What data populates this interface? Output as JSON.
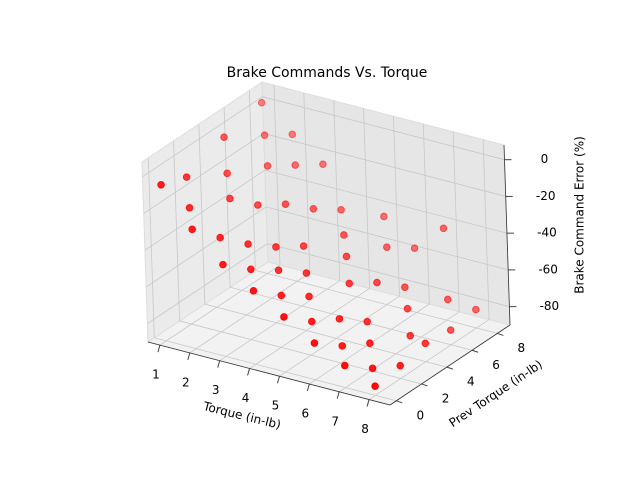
{
  "chart_data": {
    "type": "scatter3d",
    "title": "Brake Commands Vs. Torque",
    "xlabel": "Torque (in-lb)",
    "ylabel": "Prev Torque (in-lb)",
    "zlabel": "Brake Command Error  (%)",
    "series": [
      {
        "color": "#ff0000",
        "x": [
          1,
          1,
          1,
          1,
          1.5,
          1.5,
          1.5,
          2,
          2,
          2,
          2,
          2.5,
          2.5,
          2.5,
          3,
          3,
          3,
          3,
          3.5,
          3.5,
          3.5,
          4,
          4,
          4,
          4,
          4.5,
          4.5,
          4.5,
          5,
          5,
          5,
          5,
          5.5,
          5.5,
          5.5,
          6,
          6,
          6,
          6,
          6.5,
          6.5,
          6.5,
          7,
          7,
          7,
          7,
          7.5,
          7.5,
          7.5,
          8,
          8,
          8,
          8,
          8
        ],
        "y": [
          0,
          2,
          5,
          8,
          1,
          4,
          7,
          0,
          3,
          6,
          8,
          1,
          4,
          7,
          0,
          2,
          5,
          8,
          1,
          3,
          6,
          0,
          2,
          4,
          7,
          1,
          3,
          6,
          0,
          2,
          5,
          8,
          1,
          4,
          7,
          0,
          2,
          5,
          8,
          1,
          3,
          6,
          0,
          2,
          5,
          8,
          1,
          4,
          7,
          0,
          2,
          4,
          6,
          8
        ],
        "z": [
          -5,
          -10,
          -2,
          3,
          -20,
          -15,
          -8,
          -25,
          -22,
          -18,
          -10,
          -32,
          -28,
          -20,
          -40,
          -38,
          -30,
          -22,
          -45,
          -42,
          -35,
          -50,
          -48,
          -44,
          -38,
          -55,
          -52,
          -45,
          -60,
          -58,
          -50,
          -42,
          -65,
          -58,
          -52,
          -70,
          -66,
          -60,
          -55,
          -74,
          -70,
          -65,
          -78,
          -75,
          -70,
          -40,
          -82,
          -78,
          -72,
          -85,
          -83,
          -80,
          -82,
          -80
        ]
      }
    ],
    "xlim": [
      0.6,
      8.7
    ],
    "ylim": [
      -0.5,
      9
    ],
    "zlim": [
      -90,
      8
    ],
    "xticks": [
      1,
      2,
      3,
      4,
      5,
      6,
      7,
      8
    ],
    "yticks": [
      0,
      2,
      4,
      6,
      8
    ],
    "zticks": [
      0,
      -20,
      -40,
      -60,
      -80
    ],
    "grid": true
  }
}
